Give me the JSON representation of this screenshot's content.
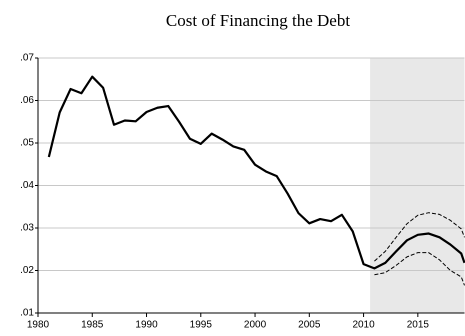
{
  "chart_data": {
    "type": "line",
    "title": "Cost of Financing the Debt",
    "x": [
      1981,
      1982,
      1983,
      1984,
      1985,
      1986,
      1987,
      1988,
      1989,
      1990,
      1991,
      1992,
      1993,
      1994,
      1995,
      1996,
      1997,
      1998,
      1999,
      2000,
      2001,
      2002,
      2003,
      2004,
      2005,
      2006,
      2007,
      2008,
      2009,
      2010,
      2011,
      2012,
      2013,
      2014,
      2015,
      2016,
      2017,
      2018,
      2019,
      2019.3
    ],
    "series": [
      {
        "color": "#000000",
        "width": 2.2,
        "dashed": false,
        "values": [
          0.0467,
          0.0572,
          0.0627,
          0.0617,
          0.0656,
          0.063,
          0.0543,
          0.0553,
          0.0551,
          0.0573,
          0.0583,
          0.0587,
          0.055,
          0.051,
          0.0498,
          0.0522,
          0.0508,
          0.0492,
          0.0484,
          0.0449,
          0.0433,
          0.0422,
          0.0381,
          0.0335,
          0.0311,
          0.0321,
          0.0316,
          0.0331,
          0.0292,
          0.0215,
          0.0205,
          0.0218,
          0.0245,
          0.0271,
          0.0284,
          0.0287,
          0.0278,
          0.0261,
          0.024,
          0.0218
        ]
      },
      {
        "color": "#000000",
        "width": 1,
        "dashed": true,
        "values": [
          null,
          null,
          null,
          null,
          null,
          null,
          null,
          null,
          null,
          null,
          null,
          null,
          null,
          null,
          null,
          null,
          null,
          null,
          null,
          null,
          null,
          null,
          null,
          null,
          null,
          null,
          null,
          null,
          null,
          null,
          0.0222,
          0.0245,
          0.0278,
          0.031,
          0.033,
          0.0336,
          0.0332,
          0.0318,
          0.0298,
          0.0278
        ]
      },
      {
        "color": "#000000",
        "width": 1,
        "dashed": true,
        "values": [
          null,
          null,
          null,
          null,
          null,
          null,
          null,
          null,
          null,
          null,
          null,
          null,
          null,
          null,
          null,
          null,
          null,
          null,
          null,
          null,
          null,
          null,
          null,
          null,
          null,
          null,
          null,
          null,
          null,
          null,
          0.019,
          0.0195,
          0.0212,
          0.0232,
          0.0242,
          0.0242,
          0.0225,
          0.02,
          0.0185,
          0.0165
        ]
      }
    ],
    "shaded_xrange": [
      2010.6,
      2019.3
    ],
    "shade_color": "#e8e8e8",
    "xlim": [
      1980,
      2019.3
    ],
    "xticks": [
      1980,
      1985,
      1990,
      1995,
      2000,
      2005,
      2010,
      2015
    ],
    "ylim": [
      0.01,
      0.07
    ],
    "yticks": [
      {
        "value": 0.01,
        "label": ".01"
      },
      {
        "value": 0.02,
        "label": ".02"
      },
      {
        "value": 0.03,
        "label": ".03"
      },
      {
        "value": 0.04,
        "label": ".04"
      },
      {
        "value": 0.05,
        "label": ".05"
      },
      {
        "value": 0.06,
        "label": ".06"
      },
      {
        "value": 0.07,
        "label": ".07"
      }
    ],
    "grid": true
  }
}
